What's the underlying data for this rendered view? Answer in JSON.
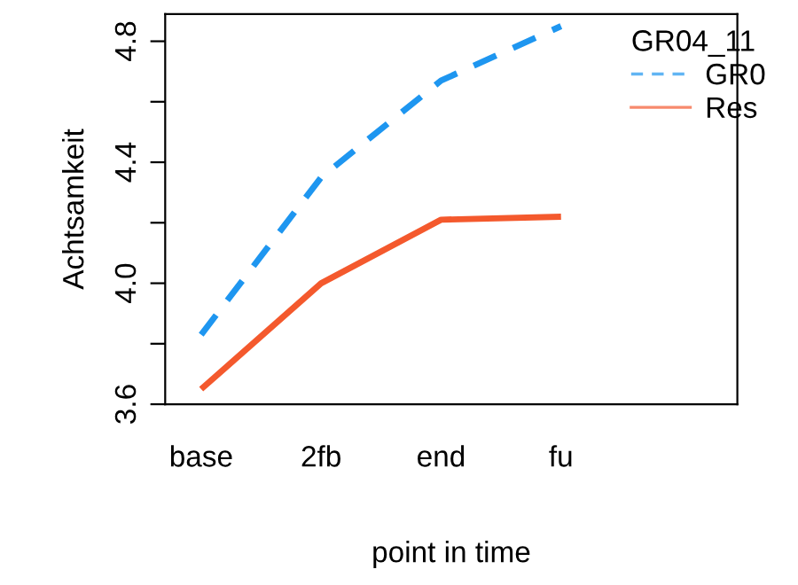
{
  "chart_data": {
    "type": "line",
    "xlabel": "point in time",
    "ylabel": "Achtsamkeit",
    "legend_title": "GR04_11",
    "categories": [
      "base",
      "2fb",
      "end",
      "fu"
    ],
    "series": [
      {
        "name": "GR0",
        "color": "#1e96f0",
        "line_style": "dashed",
        "values": [
          3.83,
          4.35,
          4.67,
          4.85
        ]
      },
      {
        "name": "Res",
        "color": "#f4592d",
        "line_style": "solid",
        "values": [
          3.65,
          4.0,
          4.21,
          4.22
        ]
      }
    ],
    "ylim": [
      3.6,
      4.89
    ],
    "yticks": [
      3.6,
      {
        "value": 3.8,
        "label": null
      },
      {
        "value": 4.0,
        "label": "4.0"
      },
      {
        "value": 4.2,
        "label": null
      },
      4.4,
      {
        "value": 4.6,
        "label": null
      },
      4.8
    ],
    "grid": false,
    "legend": "top right",
    "marker": "none"
  }
}
